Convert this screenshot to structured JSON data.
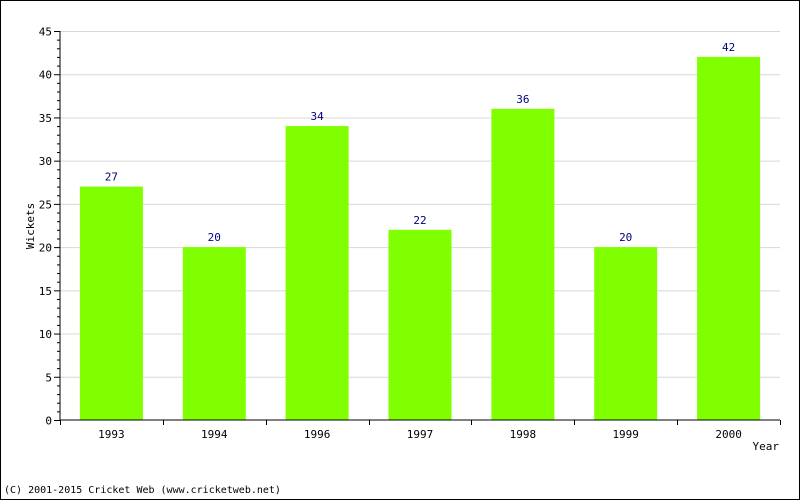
{
  "chart_data": {
    "type": "bar",
    "categories": [
      "1993",
      "1994",
      "1996",
      "1997",
      "1998",
      "1999",
      "2000"
    ],
    "values": [
      27,
      20,
      34,
      22,
      36,
      20,
      42
    ],
    "title": "",
    "xlabel": "Year",
    "ylabel": "Wickets",
    "ylim": [
      0,
      45
    ],
    "yticks": [
      0,
      5,
      10,
      15,
      20,
      25,
      30,
      35,
      40,
      45
    ],
    "grid": true,
    "bar_color": "#80ff00",
    "data_label_color": "#000080",
    "grid_color": "#d8d8d8"
  },
  "footer": {
    "copyright": "(C) 2001-2015 Cricket Web (www.cricketweb.net)"
  }
}
